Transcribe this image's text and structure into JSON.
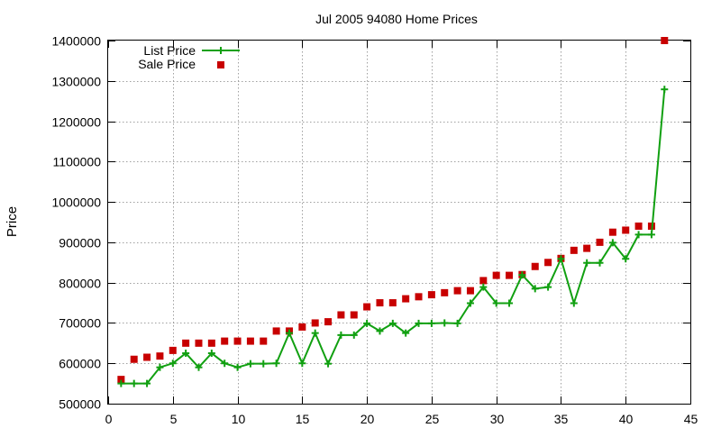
{
  "chart_data": {
    "type": "line",
    "title": "Jul 2005 94080 Home Prices",
    "xlabel": "",
    "ylabel": "Price",
    "xlim": [
      0,
      45
    ],
    "ylim": [
      500000,
      1400000
    ],
    "x_ticks": [
      0,
      5,
      10,
      15,
      20,
      25,
      30,
      35,
      40,
      45
    ],
    "y_ticks": [
      500000,
      600000,
      700000,
      800000,
      900000,
      1000000,
      1100000,
      1200000,
      1300000,
      1400000
    ],
    "grid": true,
    "legend_position": "top-left",
    "series": [
      {
        "name": "List Price",
        "style": "line-with-plus-markers",
        "color": "#11a011",
        "x": [
          1,
          2,
          3,
          4,
          5,
          6,
          7,
          8,
          9,
          10,
          11,
          12,
          13,
          14,
          15,
          16,
          17,
          18,
          19,
          20,
          21,
          22,
          23,
          24,
          25,
          26,
          27,
          28,
          29,
          30,
          31,
          32,
          33,
          34,
          35,
          36,
          37,
          38,
          39,
          40,
          41,
          42,
          43
        ],
        "values": [
          550000,
          550000,
          550000,
          590000,
          600000,
          625000,
          590000,
          625000,
          600000,
          590000,
          599000,
          599000,
          600000,
          675000,
          600000,
          675000,
          599000,
          670000,
          670000,
          699000,
          680000,
          699000,
          675000,
          699000,
          699000,
          700000,
          699000,
          749000,
          789000,
          749000,
          749000,
          819000,
          785000,
          789000,
          859000,
          749000,
          849000,
          849000,
          899000,
          859000,
          919000,
          919000,
          1279000
        ]
      },
      {
        "name": "Sale Price",
        "style": "square-markers",
        "color": "#c80000",
        "x": [
          1,
          2,
          3,
          4,
          5,
          6,
          7,
          8,
          9,
          10,
          11,
          12,
          13,
          14,
          15,
          16,
          17,
          18,
          19,
          20,
          21,
          22,
          23,
          24,
          25,
          26,
          27,
          28,
          29,
          30,
          31,
          32,
          33,
          34,
          35,
          36,
          37,
          38,
          39,
          40,
          41,
          42,
          43
        ],
        "values": [
          560000,
          610000,
          615000,
          618000,
          632000,
          650000,
          650000,
          650000,
          655000,
          655000,
          655000,
          655000,
          680000,
          680000,
          690000,
          700000,
          703000,
          720000,
          720000,
          740000,
          750000,
          750000,
          760000,
          765000,
          770000,
          775000,
          780000,
          780000,
          805000,
          818000,
          818000,
          820000,
          840000,
          850000,
          860000,
          880000,
          885000,
          900000,
          925000,
          930000,
          940000,
          940000,
          1400000
        ]
      }
    ]
  }
}
